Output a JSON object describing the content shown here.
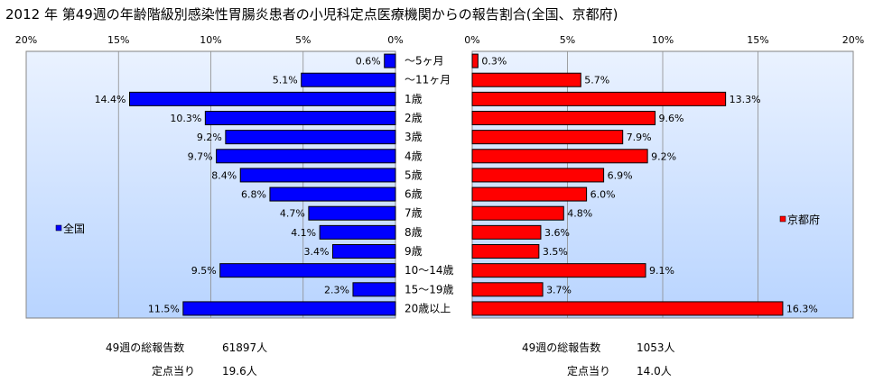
{
  "title": "2012 年 第49週の年齢階級別感染性胃腸炎患者の小児科定点医療機関からの報告割合(全国、京都府)",
  "chart_data": {
    "type": "bar",
    "orientation": "horizontal",
    "layout": "back-to-back",
    "categories": [
      "～5ヶ月",
      "～11ヶ月",
      "1歳",
      "2歳",
      "3歳",
      "4歳",
      "5歳",
      "6歳",
      "7歳",
      "8歳",
      "9歳",
      "10～14歳",
      "15～19歳",
      "20歳以上"
    ],
    "xlim": [
      0,
      20
    ],
    "tick_labels": [
      "20%",
      "15%",
      "10%",
      "5%",
      "0%"
    ],
    "tick_labels_right": [
      "0%",
      "5%",
      "10%",
      "15%",
      "20%"
    ],
    "value_suffix": "%",
    "grid": true,
    "series": [
      {
        "name": "全国",
        "side": "left",
        "color": "#0000ff",
        "values": [
          0.6,
          5.1,
          14.4,
          10.3,
          9.2,
          9.7,
          8.4,
          6.8,
          4.7,
          4.1,
          3.4,
          9.5,
          2.3,
          11.5
        ],
        "legend_position": "left"
      },
      {
        "name": "京都府",
        "side": "right",
        "color": "#ff0000",
        "values": [
          0.3,
          5.7,
          13.3,
          9.6,
          7.9,
          9.2,
          6.9,
          6.0,
          4.8,
          3.6,
          3.5,
          9.1,
          3.7,
          16.3
        ],
        "legend_position": "right"
      }
    ]
  },
  "summary": {
    "national": {
      "total_label": "49週の総報告数",
      "total_value": "61897人",
      "per_site_label": "定点当り",
      "per_site_value": "19.6人"
    },
    "kyoto": {
      "total_label": "49週の総報告数",
      "total_value": "1053人",
      "per_site_label": "定点当り",
      "per_site_value": "14.0人"
    }
  },
  "colors": {
    "plot_background_top": "#eaf2ff",
    "plot_background_bottom": "#b8d4ff",
    "left_bar": "#0000ff",
    "right_bar": "#ff0000",
    "bar_border": "#000000"
  }
}
